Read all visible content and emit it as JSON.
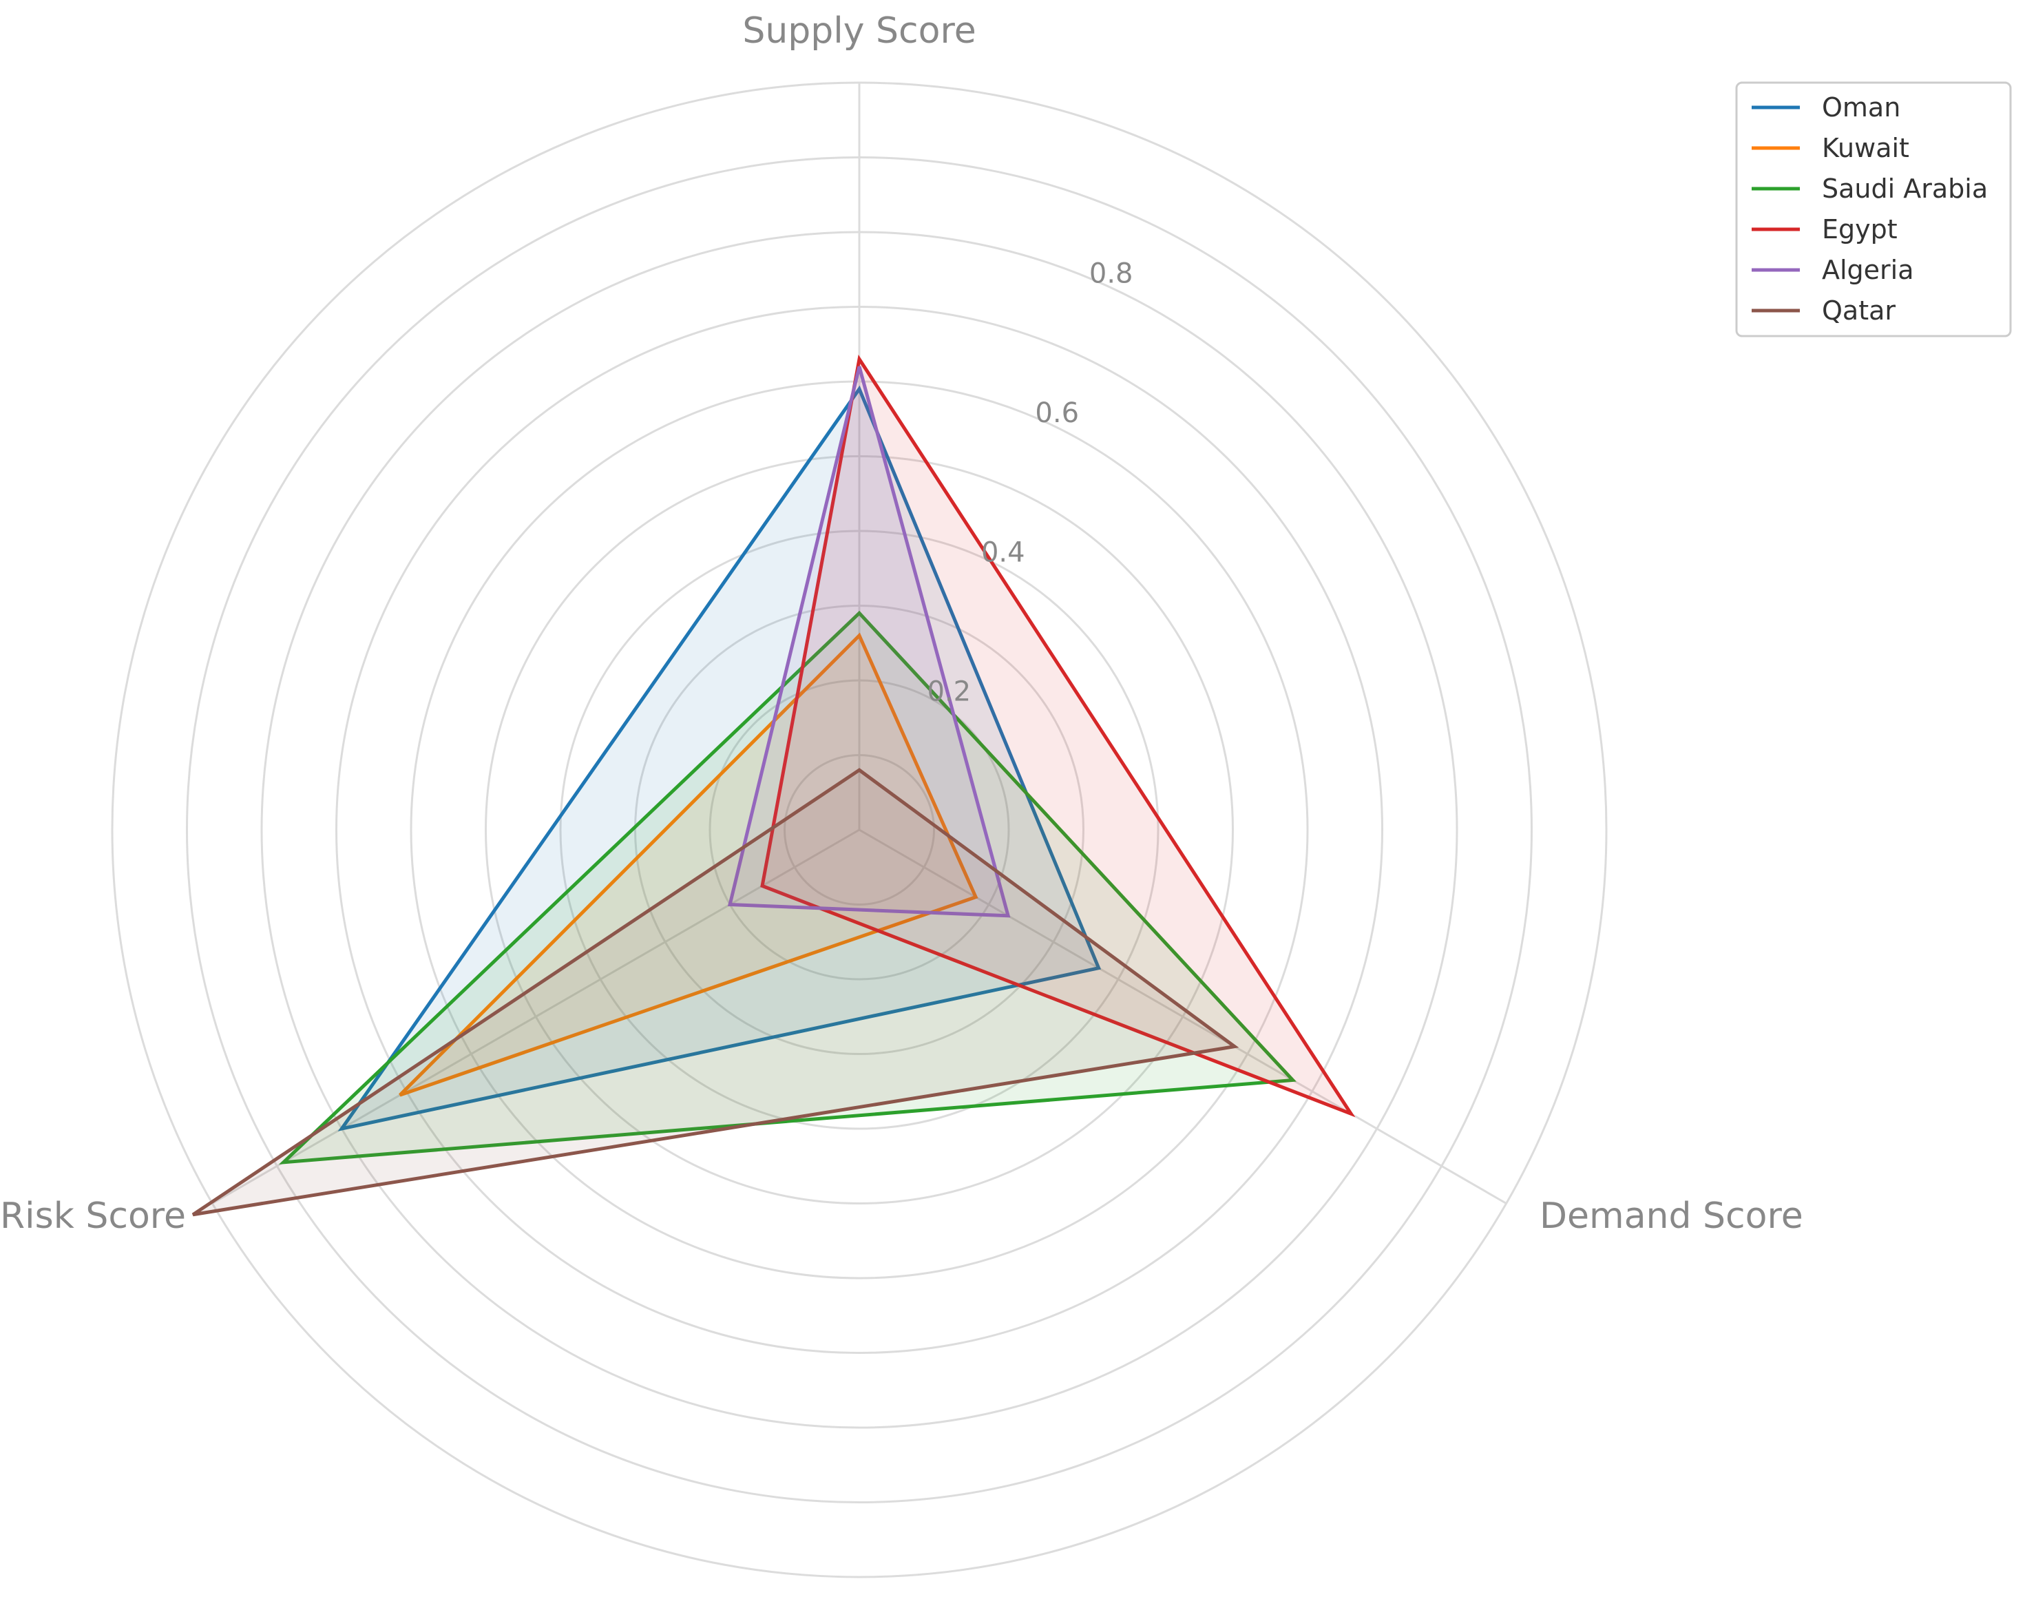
{
  "chart_data": {
    "type": "radar",
    "axes": [
      "Supply Score",
      "Demand Score",
      "Risk Score"
    ],
    "rlim": [
      0,
      1.0
    ],
    "radial_ticks": [
      0.2,
      0.4,
      0.6,
      0.8
    ],
    "radial_tick_labels": [
      "0.2",
      "0.4",
      "0.6",
      "0.8"
    ],
    "grid": true,
    "legend_position": "top-right",
    "series": [
      {
        "name": "Oman",
        "color": "#1f77b4",
        "values": [
          0.59,
          0.37,
          0.8
        ],
        "fill": true
      },
      {
        "name": "Kuwait",
        "color": "#ff7f0e",
        "values": [
          0.26,
          0.18,
          0.71
        ],
        "fill": true
      },
      {
        "name": "Saudi Arabia",
        "color": "#2ca02c",
        "values": [
          0.29,
          0.67,
          0.89
        ],
        "fill": true
      },
      {
        "name": "Egypt",
        "color": "#d62728",
        "values": [
          0.63,
          0.76,
          0.15
        ],
        "fill": true
      },
      {
        "name": "Algeria",
        "color": "#9467bd",
        "values": [
          0.62,
          0.23,
          0.2
        ],
        "fill": true
      },
      {
        "name": "Qatar",
        "color": "#8c564b",
        "values": [
          0.08,
          0.58,
          1.03
        ],
        "fill": true
      }
    ]
  }
}
